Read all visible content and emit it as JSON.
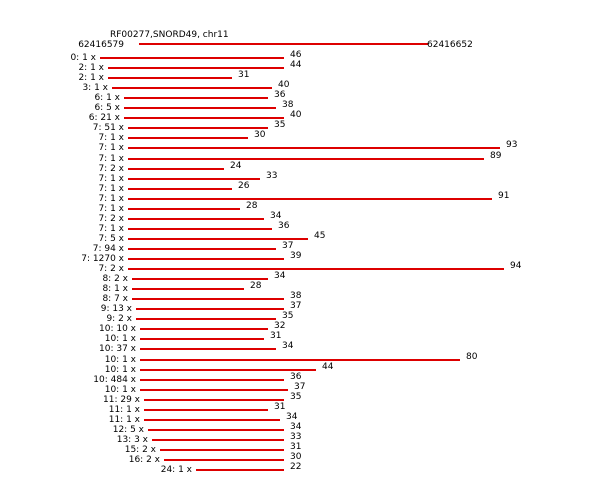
{
  "header": {
    "title": "RF00277,SNORD49, chr11",
    "coord_start": "62416579",
    "coord_end": "62416652",
    "reference_color": "#dd0000"
  },
  "reads": [
    {
      "label": "0: 1 x",
      "offset": 0,
      "length": 46
    },
    {
      "label": "2: 1 x",
      "offset": 2,
      "length": 44
    },
    {
      "label": "2: 1 x",
      "offset": 2,
      "length": 31
    },
    {
      "label": "3: 1 x",
      "offset": 3,
      "length": 40
    },
    {
      "label": "6: 1 x",
      "offset": 6,
      "length": 36
    },
    {
      "label": "6: 5 x",
      "offset": 6,
      "length": 38
    },
    {
      "label": "6: 21 x",
      "offset": 6,
      "length": 40
    },
    {
      "label": "7: 51 x",
      "offset": 7,
      "length": 35
    },
    {
      "label": "7: 1 x",
      "offset": 7,
      "length": 30
    },
    {
      "label": "7: 1 x",
      "offset": 7,
      "length": 93
    },
    {
      "label": "7: 1 x",
      "offset": 7,
      "length": 89
    },
    {
      "label": "7: 2 x",
      "offset": 7,
      "length": 24
    },
    {
      "label": "7: 1 x",
      "offset": 7,
      "length": 33
    },
    {
      "label": "7: 1 x",
      "offset": 7,
      "length": 26
    },
    {
      "label": "7: 1 x",
      "offset": 7,
      "length": 91
    },
    {
      "label": "7: 1 x",
      "offset": 7,
      "length": 28
    },
    {
      "label": "7: 2 x",
      "offset": 7,
      "length": 34
    },
    {
      "label": "7: 1 x",
      "offset": 7,
      "length": 36
    },
    {
      "label": "7: 5 x",
      "offset": 7,
      "length": 45
    },
    {
      "label": "7: 94 x",
      "offset": 7,
      "length": 37
    },
    {
      "label": "7: 1270 x",
      "offset": 7,
      "length": 39
    },
    {
      "label": "7: 2 x",
      "offset": 7,
      "length": 94
    },
    {
      "label": "8: 2 x",
      "offset": 8,
      "length": 34
    },
    {
      "label": "8: 1 x",
      "offset": 8,
      "length": 28
    },
    {
      "label": "8: 7 x",
      "offset": 8,
      "length": 38
    },
    {
      "label": "9: 13 x",
      "offset": 9,
      "length": 37
    },
    {
      "label": "9: 2 x",
      "offset": 9,
      "length": 35
    },
    {
      "label": "10: 10 x",
      "offset": 10,
      "length": 32
    },
    {
      "label": "10: 1 x",
      "offset": 10,
      "length": 31
    },
    {
      "label": "10: 37 x",
      "offset": 10,
      "length": 34
    },
    {
      "label": "10: 1 x",
      "offset": 10,
      "length": 80
    },
    {
      "label": "10: 1 x",
      "offset": 10,
      "length": 44
    },
    {
      "label": "10: 484 x",
      "offset": 10,
      "length": 36
    },
    {
      "label": "10: 1 x",
      "offset": 10,
      "length": 37
    },
    {
      "label": "11: 29 x",
      "offset": 11,
      "length": 35
    },
    {
      "label": "11: 1 x",
      "offset": 11,
      "length": 31
    },
    {
      "label": "11: 1 x",
      "offset": 11,
      "length": 34
    },
    {
      "label": "12: 5 x",
      "offset": 12,
      "length": 34
    },
    {
      "label": "13: 3 x",
      "offset": 13,
      "length": 33
    },
    {
      "label": "15: 2 x",
      "offset": 15,
      "length": 31
    },
    {
      "label": "16: 2 x",
      "offset": 16,
      "length": 30
    },
    {
      "label": "24: 1 x",
      "offset": 24,
      "length": 22
    }
  ]
}
